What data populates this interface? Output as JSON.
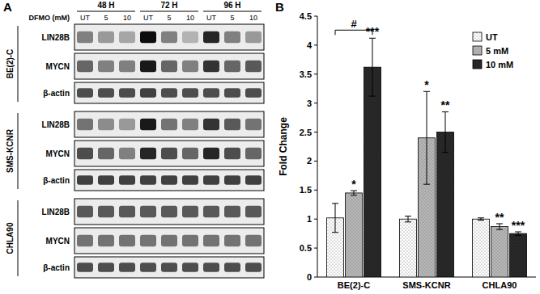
{
  "chart_data": {
    "type": "bar",
    "panel_label": "B",
    "y_label": "Fold Change",
    "categories": [
      "BE(2)-C",
      "SMS-KCNR",
      "CHLA90"
    ],
    "series": [
      {
        "name": "UT",
        "color": "#ffffff",
        "values": [
          1.02,
          1.0,
          1.0
        ],
        "errors": [
          0.25,
          0.05,
          0.02
        ],
        "significance": [
          null,
          null,
          null
        ]
      },
      {
        "name": "5 mM",
        "color": "#b8b8b8",
        "values": [
          1.45,
          2.4,
          0.87
        ],
        "errors": [
          0.04,
          0.8,
          0.05
        ],
        "significance": [
          "*",
          "*",
          "**"
        ]
      },
      {
        "name": "10 mM",
        "color": "#2b2b2b",
        "values": [
          3.62,
          2.5,
          0.75
        ],
        "errors": [
          0.5,
          0.35,
          0.03
        ],
        "significance": [
          "***",
          "**",
          "***"
        ]
      }
    ],
    "annotations": [
      {
        "text": "#",
        "category": 0,
        "series": [
          0,
          2
        ]
      }
    ],
    "ylim": [
      0,
      4.5
    ],
    "yticks": [
      0,
      0.5,
      1,
      1.5,
      2,
      2.5,
      3,
      3.5,
      4,
      4.5
    ],
    "grid": false,
    "legend": "upper-right"
  },
  "blots": {
    "panel_label": "A",
    "treatment_label": "DFMO (mM)",
    "timepoints": [
      "48 H",
      "72 H",
      "96 H"
    ],
    "lanes": [
      "UT",
      "5",
      "10"
    ],
    "panels": [
      {
        "cell_line": "BE(2)-C",
        "rows": [
          {
            "protein": "LIN28B",
            "intensity": [
              0.5,
              0.4,
              0.35,
              0.95,
              0.5,
              0.3,
              0.85,
              0.5,
              0.4
            ]
          },
          {
            "protein": "MYCN",
            "intensity": [
              0.6,
              0.5,
              0.5,
              0.9,
              0.6,
              0.5,
              0.8,
              0.6,
              0.65
            ]
          },
          {
            "protein": "β-actin",
            "intensity": [
              0.7,
              0.7,
              0.7,
              0.75,
              0.7,
              0.7,
              0.7,
              0.7,
              0.7
            ]
          }
        ]
      },
      {
        "cell_line": "SMS-KCNR",
        "rows": [
          {
            "protein": "LIN28B",
            "intensity": [
              0.55,
              0.45,
              0.4,
              0.9,
              0.55,
              0.5,
              0.8,
              0.65,
              0.55
            ]
          },
          {
            "protein": "MYCN",
            "intensity": [
              0.7,
              0.6,
              0.5,
              0.85,
              0.7,
              0.6,
              0.85,
              0.7,
              0.6
            ]
          },
          {
            "protein": "β-actin",
            "intensity": [
              0.75,
              0.75,
              0.75,
              0.75,
              0.75,
              0.75,
              0.75,
              0.75,
              0.75
            ]
          }
        ]
      },
      {
        "cell_line": "CHLA90",
        "rows": [
          {
            "protein": "LIN28B",
            "intensity": [
              0.65,
              0.65,
              0.65,
              0.65,
              0.65,
              0.65,
              0.65,
              0.65,
              0.65
            ]
          },
          {
            "protein": "MYCN",
            "intensity": [
              0.55,
              0.55,
              0.55,
              0.55,
              0.55,
              0.55,
              0.55,
              0.55,
              0.55
            ]
          },
          {
            "protein": "β-actin",
            "intensity": [
              0.7,
              0.7,
              0.7,
              0.7,
              0.7,
              0.7,
              0.7,
              0.7,
              0.7
            ]
          }
        ]
      }
    ]
  }
}
